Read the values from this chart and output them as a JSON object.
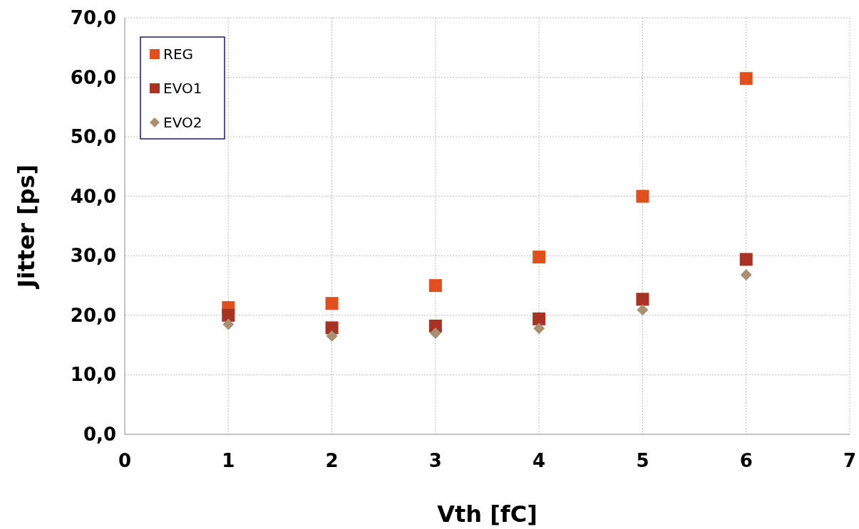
{
  "chart_data": {
    "type": "scatter",
    "xlabel": "Vth [fC]",
    "ylabel": "Jitter [ps]",
    "x": [
      1,
      2,
      3,
      4,
      5,
      6
    ],
    "series": [
      {
        "name": "REG",
        "color": "#e0501c",
        "marker": "square",
        "values": [
          21.3,
          22.0,
          25.0,
          29.8,
          40.0,
          59.8
        ]
      },
      {
        "name": "EVO1",
        "color": "#a83224",
        "marker": "square",
        "values": [
          20.0,
          17.9,
          18.2,
          19.4,
          22.7,
          29.4
        ]
      },
      {
        "name": "EVO2",
        "color": "#a89070",
        "marker": "diamond",
        "values": [
          18.5,
          16.5,
          17.0,
          17.8,
          20.9,
          26.8
        ]
      }
    ],
    "xlim": [
      0,
      7
    ],
    "xticks": [
      0,
      1,
      2,
      3,
      4,
      5,
      6,
      7
    ],
    "ylim": [
      0,
      70
    ],
    "yticks": [
      {
        "value": 0,
        "label": "0,0"
      },
      {
        "value": 10,
        "label": "10,0"
      },
      {
        "value": 20,
        "label": "20,0"
      },
      {
        "value": 30,
        "label": "30,0"
      },
      {
        "value": 40,
        "label": "40,0"
      },
      {
        "value": 50,
        "label": "50,0"
      },
      {
        "value": 60,
        "label": "60,0"
      },
      {
        "value": 70,
        "label": "70,0"
      }
    ],
    "grid": true,
    "legend": "top left"
  }
}
